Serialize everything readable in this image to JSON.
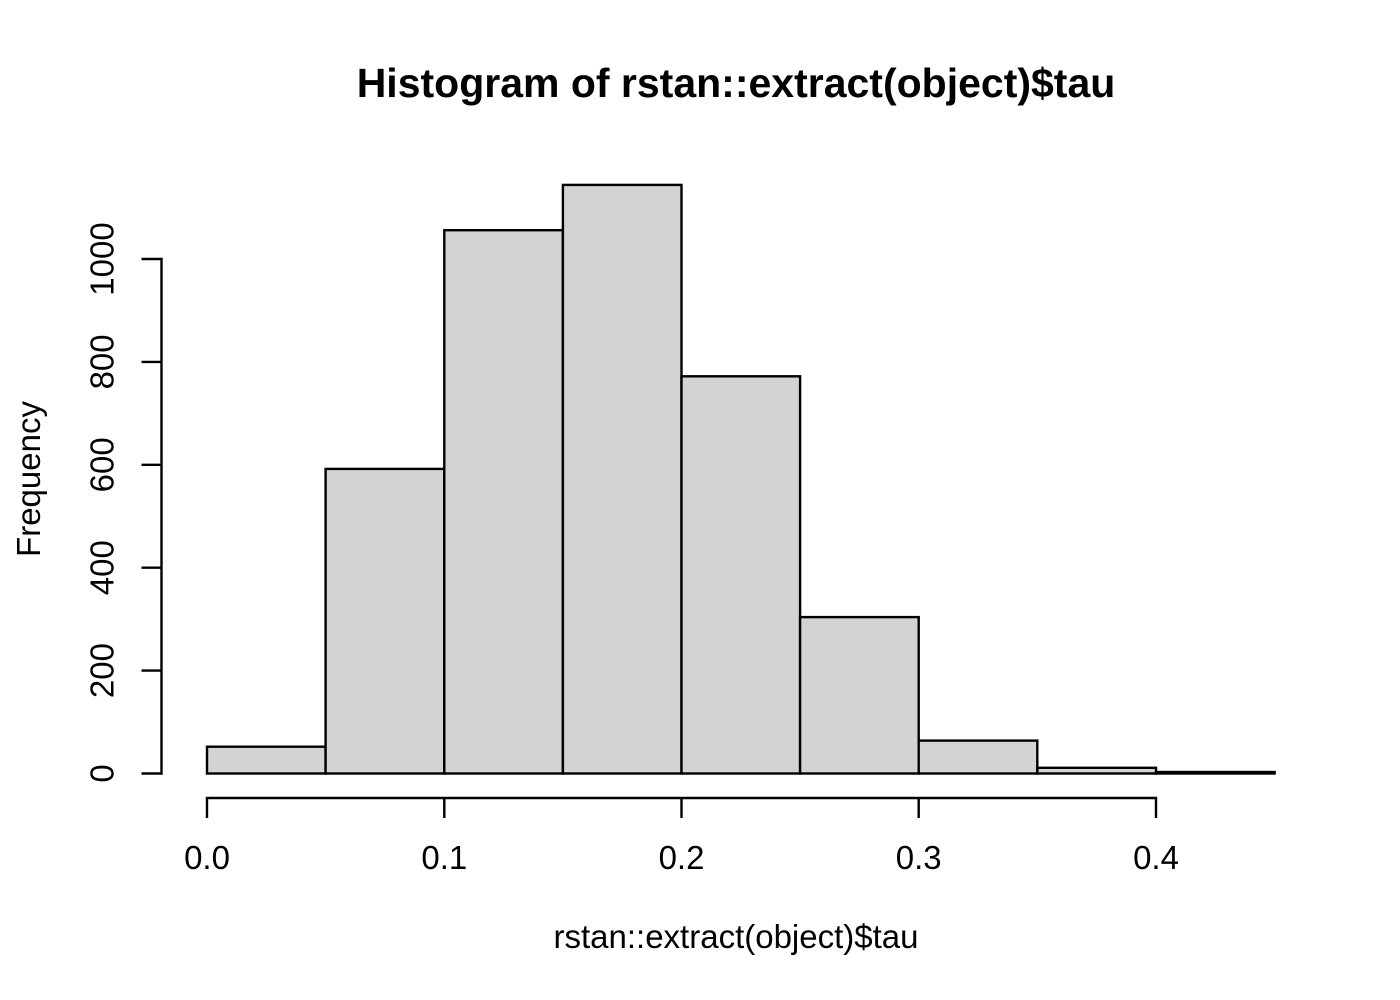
{
  "chart_data": {
    "type": "bar",
    "subtype": "histogram",
    "title": "Histogram of rstan::extract(object)$tau",
    "xlabel": "rstan::extract(object)$tau",
    "ylabel": "Frequency",
    "bin_edges": [
      0.0,
      0.05,
      0.1,
      0.15,
      0.2,
      0.25,
      0.3,
      0.35,
      0.4,
      0.45
    ],
    "values": [
      52,
      592,
      1056,
      1144,
      772,
      304,
      64,
      11,
      3
    ],
    "x_ticks": [
      {
        "value": 0.0,
        "label": "0.0"
      },
      {
        "value": 0.1,
        "label": "0.1"
      },
      {
        "value": 0.2,
        "label": "0.2"
      },
      {
        "value": 0.3,
        "label": "0.3"
      },
      {
        "value": 0.4,
        "label": "0.4"
      }
    ],
    "y_ticks": [
      {
        "value": 0,
        "label": "0"
      },
      {
        "value": 200,
        "label": "200"
      },
      {
        "value": 400,
        "label": "400"
      },
      {
        "value": 600,
        "label": "600"
      },
      {
        "value": 800,
        "label": "800"
      },
      {
        "value": 1000,
        "label": "1000"
      }
    ],
    "xlim": [
      0.0,
      0.45
    ],
    "ylim": [
      0,
      1150
    ],
    "grid": false,
    "legend": "none",
    "colors": {
      "bar_fill": "#d3d3d3",
      "bar_stroke": "#000000",
      "axis": "#000000",
      "background": "#ffffff",
      "text": "#000000"
    }
  }
}
